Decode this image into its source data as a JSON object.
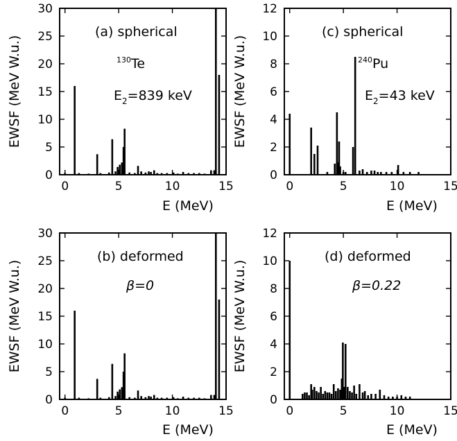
{
  "chart_data": [
    {
      "id": "a",
      "type": "bar",
      "xlabel": "E (MeV)",
      "ylabel": "EWSF (MeV W.u.)",
      "xlim": [
        -0.5,
        15
      ],
      "ylim": [
        0,
        30
      ],
      "xticks": [
        "0",
        "5",
        "10",
        "15"
      ],
      "yticks": [
        "0",
        "5",
        "10",
        "15",
        "20",
        "25",
        "30"
      ],
      "annotations": {
        "label": "(a) spherical",
        "nucleus_mass": "130",
        "nucleus_symbol": "Te",
        "energy_prefix": "E",
        "energy_sub": "2",
        "energy_value": "=839 keV"
      },
      "x": [
        0.0,
        0.9,
        1.3,
        2.2,
        3.0,
        3.3,
        4.1,
        4.4,
        4.7,
        4.9,
        5.1,
        5.3,
        5.45,
        5.55,
        6.0,
        6.5,
        6.8,
        7.1,
        7.5,
        7.8,
        8.0,
        8.3,
        8.6,
        9.0,
        9.5,
        10.1,
        10.5,
        11.0,
        11.5,
        12.0,
        12.5,
        13.0,
        13.6,
        13.9,
        14.05,
        14.35
      ],
      "values": [
        0.3,
        16,
        0.3,
        0.2,
        3.7,
        0.3,
        0.4,
        6.4,
        0.6,
        1.4,
        1.8,
        2.2,
        5.0,
        8.3,
        0.4,
        0.3,
        1.6,
        0.6,
        0.4,
        0.6,
        0.5,
        0.8,
        0.3,
        0.3,
        0.3,
        0.4,
        0.2,
        0.5,
        0.3,
        0.3,
        0.3,
        0.2,
        0.8,
        0.8,
        30,
        18
      ]
    },
    {
      "id": "c",
      "type": "bar",
      "xlabel": "E (MeV)",
      "ylabel": "EWSF (MeV W.u.)",
      "xlim": [
        -0.5,
        15
      ],
      "ylim": [
        0,
        12
      ],
      "xticks": [
        "0",
        "5",
        "10",
        "15"
      ],
      "yticks": [
        "0",
        "2",
        "4",
        "6",
        "8",
        "10",
        "12"
      ],
      "annotations": {
        "label": "(c) spherical",
        "nucleus_mass": "240",
        "nucleus_symbol": "Pu",
        "energy_prefix": "E",
        "energy_sub": "2",
        "energy_value": "=43 keV"
      },
      "x": [
        0.0,
        2.0,
        2.3,
        2.6,
        3.5,
        4.2,
        4.4,
        4.5,
        4.6,
        4.7,
        5.0,
        5.2,
        5.9,
        6.1,
        6.5,
        6.8,
        7.2,
        7.6,
        7.9,
        8.2,
        8.5,
        9.0,
        9.5,
        10.1,
        10.6,
        11.2,
        12.0
      ],
      "values": [
        4.4,
        3.4,
        1.5,
        2.1,
        0.2,
        0.8,
        4.5,
        0.9,
        2.4,
        0.6,
        0.2,
        0.2,
        2.0,
        8.5,
        0.3,
        0.4,
        0.2,
        0.3,
        0.3,
        0.2,
        0.2,
        0.2,
        0.2,
        0.7,
        0.2,
        0.2,
        0.2
      ]
    },
    {
      "id": "b",
      "type": "bar",
      "xlabel": "E (MeV)",
      "ylabel": "EWSF (MeV W.u.)",
      "xlim": [
        -0.5,
        15
      ],
      "ylim": [
        0,
        30
      ],
      "xticks": [
        "0",
        "5",
        "10",
        "15"
      ],
      "yticks": [
        "0",
        "5",
        "10",
        "15",
        "20",
        "25",
        "30"
      ],
      "annotations": {
        "label": "(b) deformed",
        "beta": "β=0"
      },
      "x": [
        0.0,
        0.9,
        1.3,
        2.2,
        3.0,
        3.3,
        4.1,
        4.4,
        4.7,
        4.9,
        5.1,
        5.3,
        5.45,
        5.55,
        6.0,
        6.5,
        6.8,
        7.1,
        7.5,
        7.8,
        8.0,
        8.3,
        8.6,
        9.0,
        9.5,
        10.1,
        10.5,
        11.0,
        11.5,
        12.0,
        12.5,
        13.0,
        13.6,
        13.9,
        14.05,
        14.35
      ],
      "values": [
        0.3,
        16,
        0.3,
        0.2,
        3.7,
        0.3,
        0.4,
        6.4,
        0.6,
        1.4,
        1.8,
        2.2,
        5.0,
        8.3,
        0.4,
        0.3,
        1.6,
        0.6,
        0.4,
        0.6,
        0.5,
        0.8,
        0.3,
        0.3,
        0.3,
        0.4,
        0.2,
        0.5,
        0.3,
        0.3,
        0.3,
        0.2,
        0.8,
        0.8,
        30,
        18
      ]
    },
    {
      "id": "d",
      "type": "bar",
      "xlabel": "E (MeV)",
      "ylabel": "EWSF (MeV W.u.)",
      "xlim": [
        -0.5,
        15
      ],
      "ylim": [
        0,
        12
      ],
      "xticks": [
        "0",
        "5",
        "10",
        "15"
      ],
      "yticks": [
        "0",
        "2",
        "4",
        "6",
        "8",
        "10",
        "12"
      ],
      "annotations": {
        "label": "(d) deformed",
        "beta": "β=0.22"
      },
      "x": [
        0.0,
        1.2,
        1.4,
        1.6,
        1.8,
        2.0,
        2.1,
        2.3,
        2.5,
        2.7,
        2.9,
        3.1,
        3.3,
        3.5,
        3.7,
        3.9,
        4.1,
        4.3,
        4.5,
        4.7,
        4.85,
        4.95,
        5.05,
        5.2,
        5.4,
        5.6,
        5.8,
        6.0,
        6.2,
        6.5,
        6.8,
        7.0,
        7.3,
        7.6,
        8.0,
        8.4,
        8.8,
        9.2,
        9.6,
        10.0,
        10.4,
        10.8,
        11.2
      ],
      "values": [
        10.0,
        0.4,
        0.5,
        0.5,
        0.3,
        1.1,
        0.7,
        0.9,
        0.6,
        0.5,
        0.9,
        0.4,
        0.6,
        0.5,
        0.5,
        0.4,
        1.1,
        0.6,
        0.8,
        0.7,
        1.5,
        4.1,
        0.9,
        4.0,
        0.9,
        0.6,
        0.5,
        1.0,
        0.4,
        1.1,
        0.5,
        0.6,
        0.3,
        0.4,
        0.4,
        0.7,
        0.3,
        0.2,
        0.2,
        0.2,
        0.3,
        0.2,
        0.2
      ]
    }
  ]
}
